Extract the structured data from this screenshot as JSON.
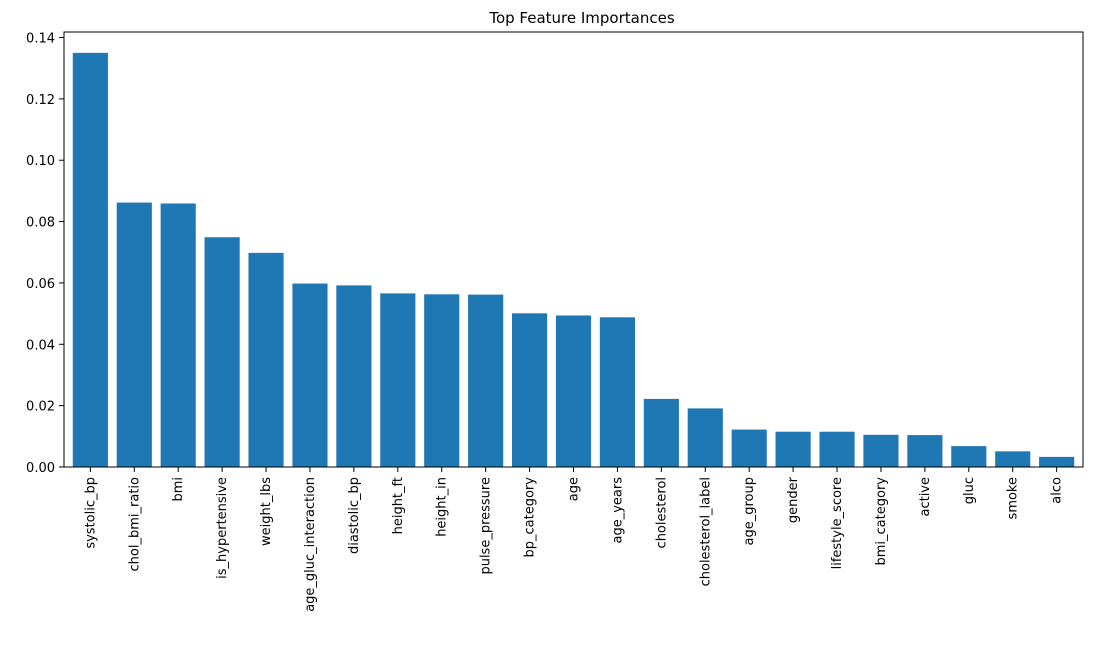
{
  "chart_data": {
    "type": "bar",
    "title": "Top Feature Importances",
    "xlabel": "",
    "ylabel": "",
    "categories": [
      "systolic_bp",
      "chol_bmi_ratio",
      "bmi",
      "is_hypertensive",
      "weight_lbs",
      "age_gluc_interaction",
      "diastolic_bp",
      "height_ft",
      "height_in",
      "pulse_pressure",
      "bp_category",
      "age",
      "age_years",
      "cholesterol",
      "cholesterol_label",
      "age_group",
      "gender",
      "lifestyle_score",
      "bmi_category",
      "active",
      "gluc",
      "smoke",
      "alco"
    ],
    "values": [
      0.135,
      0.0862,
      0.0859,
      0.0749,
      0.0698,
      0.0598,
      0.0592,
      0.0566,
      0.0563,
      0.0562,
      0.0501,
      0.0494,
      0.0488,
      0.0222,
      0.0191,
      0.0122,
      0.0115,
      0.0115,
      0.0105,
      0.0104,
      0.0068,
      0.0051,
      0.0033
    ],
    "ylim": [
      0,
      0.1418
    ],
    "yticks": [
      0.0,
      0.02,
      0.04,
      0.06,
      0.08,
      0.1,
      0.12,
      0.14
    ],
    "ytick_labels": [
      "0.00",
      "0.02",
      "0.04",
      "0.06",
      "0.08",
      "0.10",
      "0.12",
      "0.14"
    ],
    "grid": false,
    "legend": "none",
    "bar_color": "#1f77b4"
  }
}
